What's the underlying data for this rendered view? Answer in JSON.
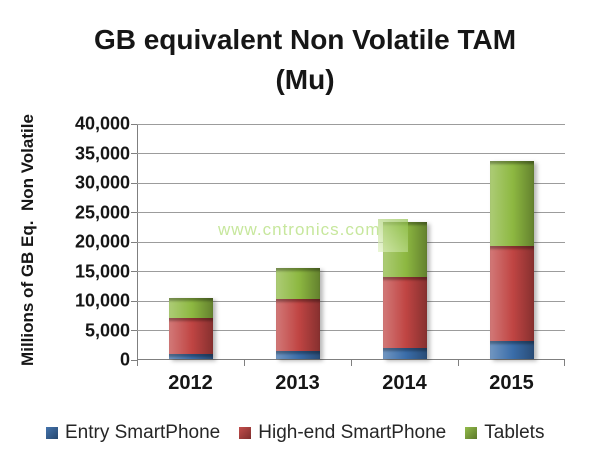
{
  "title": {
    "line1": "GB equivalent Non Volatile TAM",
    "line2": "(Mu)"
  },
  "watermark": {
    "text": "www.cntronics.com",
    "color": "#c7e79d"
  },
  "colors": {
    "gridline": "#9c9c9c",
    "axis": "#7f7f7f",
    "text": "#161616"
  },
  "chart_data": {
    "type": "bar",
    "stacked": true,
    "title": "GB equivalent Non Volatile TAM (Mu)",
    "ylabel": "Millions of GB Eq.  Non Volatile",
    "xlabel": "",
    "categories": [
      "2012",
      "2013",
      "2014",
      "2015"
    ],
    "series": [
      {
        "name": "Entry SmartPhone",
        "color": "#3a6da9",
        "values": [
          800,
          1400,
          1900,
          3100
        ]
      },
      {
        "name": "High-end SmartPhone",
        "color": "#c04543",
        "values": [
          6100,
          8700,
          12000,
          16100
        ]
      },
      {
        "name": "Tablets",
        "color": "#8db841",
        "values": [
          3400,
          5400,
          9300,
          14400
        ]
      }
    ],
    "totals": [
      10300,
      15500,
      23200,
      33600
    ],
    "ylim": [
      0,
      40000
    ],
    "ytick_step": 5000,
    "yticks": [
      {
        "v": 0,
        "label": "0"
      },
      {
        "v": 5000,
        "label": "5,000"
      },
      {
        "v": 10000,
        "label": "10,000"
      },
      {
        "v": 15000,
        "label": "15,000"
      },
      {
        "v": 20000,
        "label": "20,000"
      },
      {
        "v": 25000,
        "label": "25,000"
      },
      {
        "v": 30000,
        "label": "30,000"
      },
      {
        "v": 35000,
        "label": "35,000"
      },
      {
        "v": 40000,
        "label": "40,000"
      }
    ],
    "grid": true,
    "legend_position": "bottom"
  }
}
